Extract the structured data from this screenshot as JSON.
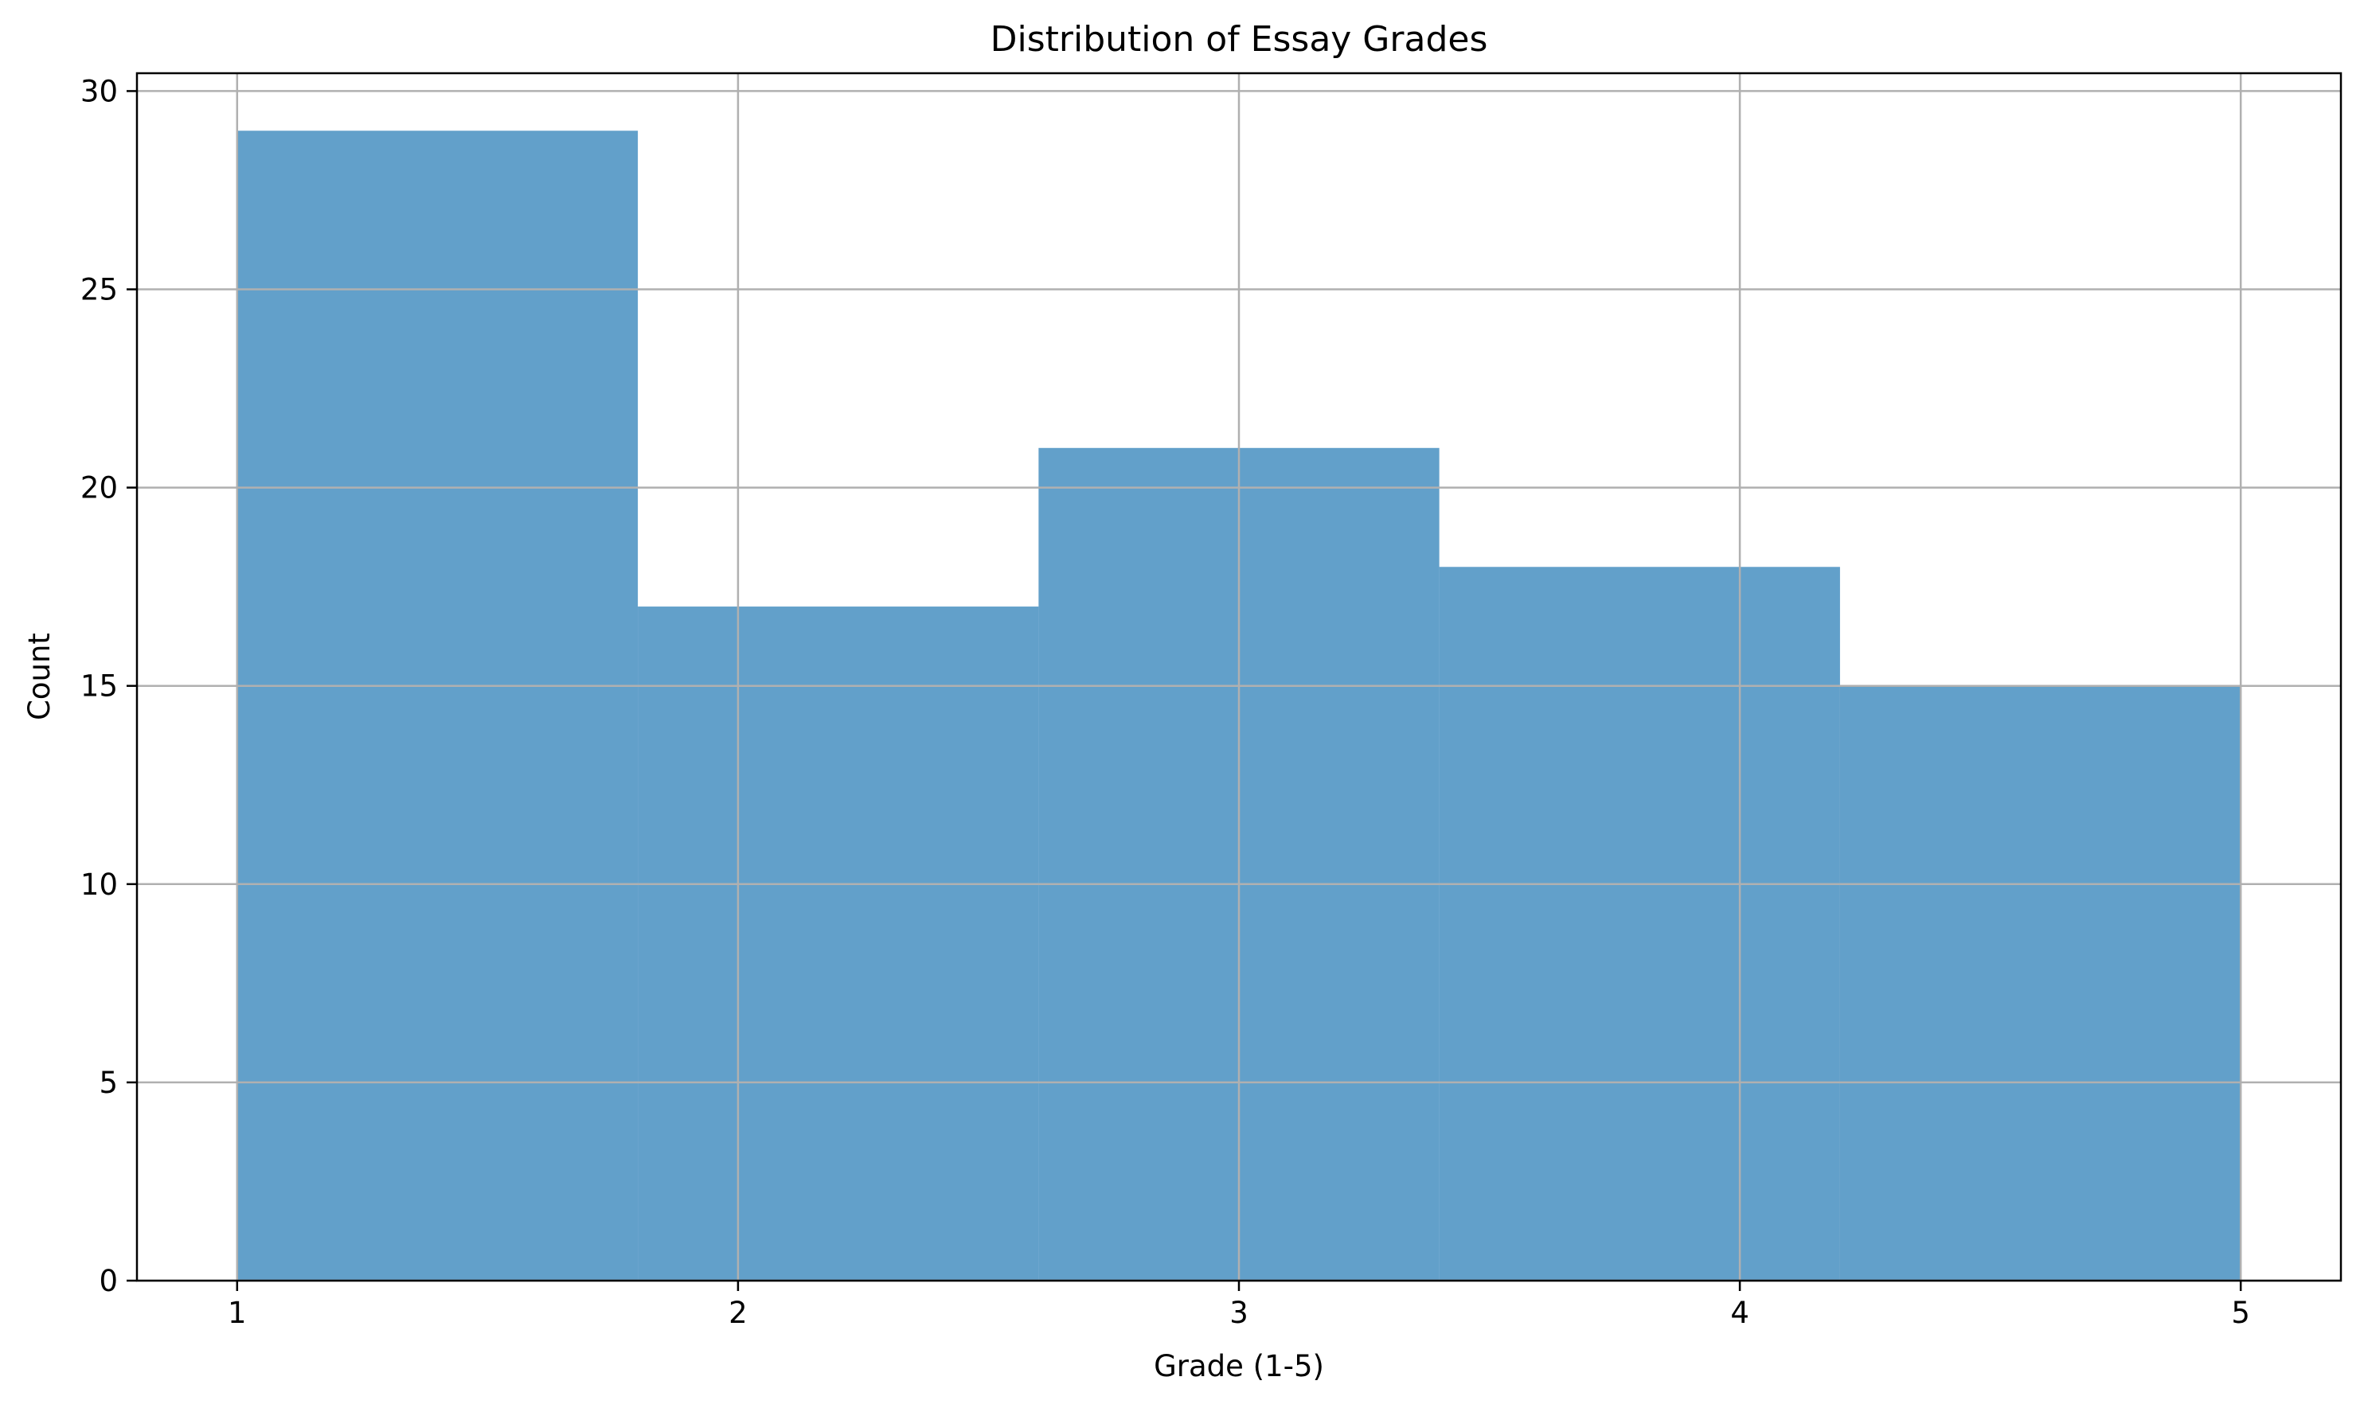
{
  "chart_data": {
    "type": "bar",
    "subtype": "histogram",
    "title": "Distribution of Essay Grades",
    "xlabel": "Grade (1-5)",
    "ylabel": "Count",
    "bins": [
      {
        "x0": 1.0,
        "x1": 1.8,
        "count": 29
      },
      {
        "x0": 1.8,
        "x1": 2.6,
        "count": 17
      },
      {
        "x0": 2.6,
        "x1": 3.4,
        "count": 21
      },
      {
        "x0": 3.4,
        "x1": 4.2,
        "count": 18
      },
      {
        "x0": 4.2,
        "x1": 5.0,
        "count": 15
      }
    ],
    "xlim": [
      0.8,
      5.2
    ],
    "ylim": [
      0,
      30.45
    ],
    "xticks": [
      1,
      2,
      3,
      4,
      5
    ],
    "yticks": [
      0,
      5,
      10,
      15,
      20,
      25,
      30
    ],
    "grid": true,
    "bar_color": "#1f77b4",
    "bar_opacity": 0.7,
    "grid_color": "#b0b0b0"
  }
}
